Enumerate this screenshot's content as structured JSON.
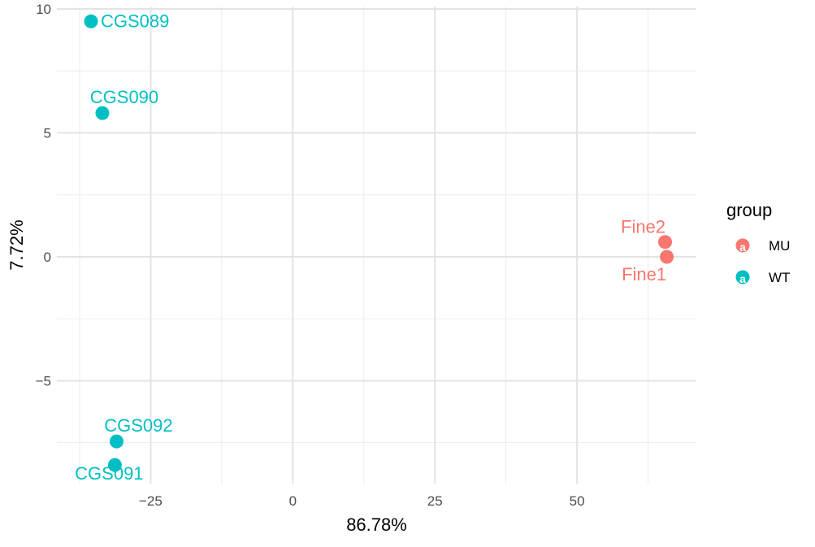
{
  "chart_data": {
    "type": "scatter",
    "title": "",
    "xlabel": "86.78%",
    "ylabel": "7.72%",
    "xlim": [
      -41.5,
      71
    ],
    "ylim": [
      -9.15,
      10.1
    ],
    "x_ticks": [
      -25,
      0,
      25,
      50
    ],
    "x_tick_labels": [
      "−25",
      "0",
      "25",
      "50"
    ],
    "y_ticks": [
      -5,
      0,
      5,
      10
    ],
    "y_tick_labels": [
      "−5",
      "0",
      "5",
      "10"
    ],
    "grid": true,
    "legend": {
      "title": "group",
      "position": "right",
      "entries": [
        "MU",
        "WT"
      ]
    },
    "colors": {
      "MU": "#F8766D",
      "WT": "#00BFC4"
    },
    "points": [
      {
        "label": "CGS089",
        "group": "WT",
        "x": -35.5,
        "y": 9.5
      },
      {
        "label": "CGS090",
        "group": "WT",
        "x": -33.5,
        "y": 5.8
      },
      {
        "label": "CGS092",
        "group": "WT",
        "x": -31.0,
        "y": -7.45
      },
      {
        "label": "CGS091",
        "group": "WT",
        "x": -31.3,
        "y": -8.4
      },
      {
        "label": "Fine2",
        "group": "MU",
        "x": 65.5,
        "y": 0.6
      },
      {
        "label": "Fine1",
        "group": "MU",
        "x": 65.8,
        "y": 0.0
      }
    ]
  }
}
